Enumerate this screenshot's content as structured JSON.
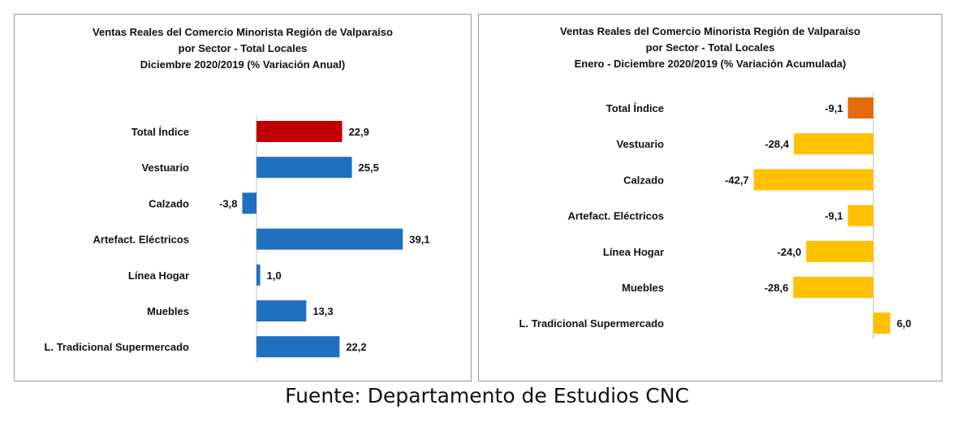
{
  "chart_data": [
    {
      "type": "bar",
      "orientation": "horizontal",
      "title": [
        "Ventas Reales del Comercio Minorista Región de Valparaíso",
        "por Sector - Total Locales",
        "Diciembre 2020/2019 (% Variación Anual)"
      ],
      "categories": [
        "Total Índice",
        "Vestuario",
        "Calzado",
        "Artefact. Eléctricos",
        "Línea Hogar",
        "Muebles",
        "L. Tradicional Supermercado"
      ],
      "values": [
        22.9,
        25.5,
        -3.8,
        39.1,
        1.0,
        13.3,
        22.2
      ],
      "labels": [
        "22,9",
        "25,5",
        "-3,8",
        "39,1",
        "1,0",
        "13,3",
        "22,2"
      ],
      "colors": [
        "#c00000",
        "#1f70c1",
        "#1f70c1",
        "#1f70c1",
        "#1f70c1",
        "#1f70c1",
        "#1f70c1"
      ],
      "xlim": [
        -5,
        42
      ],
      "grid": false,
      "legend": "none"
    },
    {
      "type": "bar",
      "orientation": "horizontal",
      "title": [
        "Ventas Reales del Comercio Minorista Región de Valparaíso",
        "por Sector  - Total Locales",
        "Enero - Diciembre  2020/2019 (% Variación Acumulada)"
      ],
      "categories": [
        "Total Índice",
        "Vestuario",
        "Calzado",
        "Artefact. Eléctricos",
        "Línea Hogar",
        "Muebles",
        "L. Tradicional Supermercado"
      ],
      "values": [
        -9.1,
        -28.4,
        -42.7,
        -9.1,
        -24.0,
        -28.6,
        6.0
      ],
      "labels": [
        "-9,1",
        "-28,4",
        "-42,7",
        "-9,1",
        "-24,0",
        "-28,6",
        "6,0"
      ],
      "colors": [
        "#e36c09",
        "#ffc000",
        "#ffc000",
        "#ffc000",
        "#ffc000",
        "#ffc000",
        "#ffc000"
      ],
      "xlim": [
        -45,
        8
      ],
      "grid": false,
      "legend": "none"
    }
  ],
  "source": "Fuente: Departamento de Estudios CNC"
}
